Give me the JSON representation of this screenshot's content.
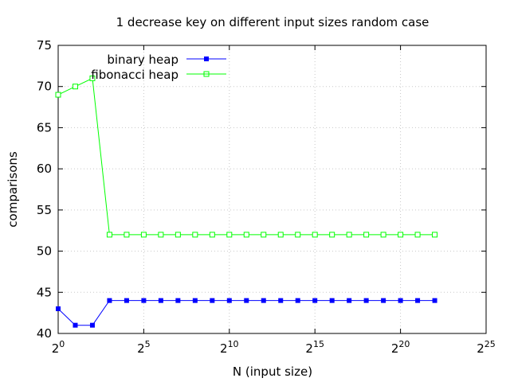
{
  "chart_data": {
    "type": "line",
    "title": "1 decrease key on different input sizes random case",
    "xlabel": "N (input size)",
    "ylabel": "comparisons",
    "x_scale": "log2",
    "x_tick_exponents": [
      0,
      5,
      10,
      15,
      20,
      25
    ],
    "x_tick_base": "2",
    "x_exponent_range": [
      0,
      25
    ],
    "ylim": [
      40,
      75
    ],
    "y_ticks": [
      40,
      45,
      50,
      55,
      60,
      65,
      70,
      75
    ],
    "grid": true,
    "legend_position": "top-left",
    "series": [
      {
        "name": "binary heap",
        "color": "#0000ff",
        "marker": "filled-square",
        "x_exponents": [
          0,
          1,
          2,
          3,
          4,
          5,
          6,
          7,
          8,
          9,
          10,
          11,
          12,
          13,
          14,
          15,
          16,
          17,
          18,
          19,
          20,
          21,
          22
        ],
        "values": [
          43,
          41,
          41,
          44,
          44,
          44,
          44,
          44,
          44,
          44,
          44,
          44,
          44,
          44,
          44,
          44,
          44,
          44,
          44,
          44,
          44,
          44,
          44
        ]
      },
      {
        "name": "fibonacci heap",
        "color": "#00ff00",
        "marker": "open-square",
        "x_exponents": [
          0,
          1,
          2,
          3,
          4,
          5,
          6,
          7,
          8,
          9,
          10,
          11,
          12,
          13,
          14,
          15,
          16,
          17,
          18,
          19,
          20,
          21,
          22
        ],
        "values": [
          69,
          70,
          71,
          52,
          52,
          52,
          52,
          52,
          52,
          52,
          52,
          52,
          52,
          52,
          52,
          52,
          52,
          52,
          52,
          52,
          52,
          52,
          52
        ]
      }
    ]
  }
}
